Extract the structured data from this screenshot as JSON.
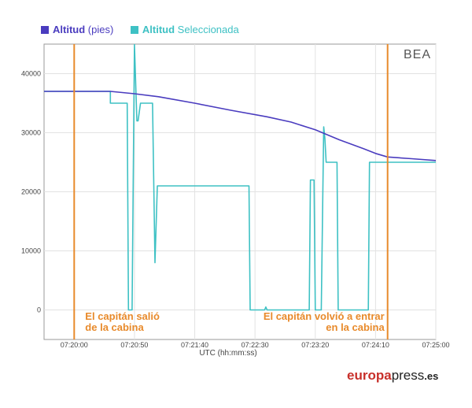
{
  "chart_data": {
    "type": "line",
    "x_type": "time",
    "x_range": [
      "07:19:35",
      "07:25:00"
    ],
    "y_range": [
      -5000,
      45000
    ],
    "grid": true,
    "xlabel": "UTC (hh:mm:ss)",
    "ylabel": "",
    "yticks": [
      {
        "value": 40000,
        "label": "40000"
      },
      {
        "value": 30000,
        "label": "30000"
      },
      {
        "value": 20000,
        "label": "20000"
      },
      {
        "value": 10000,
        "label": "10000"
      },
      {
        "value": 0,
        "label": "0"
      }
    ],
    "xticks": [
      {
        "value": "07:20:00",
        "label": "07:20:00"
      },
      {
        "value": "07:20:50",
        "label": "07:20:50"
      },
      {
        "value": "07:21:40",
        "label": "07:21:40"
      },
      {
        "value": "07:22:30",
        "label": "07:22:30"
      },
      {
        "value": "07:23:20",
        "label": "07:23:20"
      },
      {
        "value": "07:24:10",
        "label": "07:24:10"
      },
      {
        "value": "07:25:00",
        "label": "07:25:00"
      }
    ],
    "series": [
      {
        "name": "Altitud (pies)",
        "name_parts": {
          "bold": "Altitud",
          "rest": " (pies)"
        },
        "color": "#4a3cbf",
        "points": [
          [
            "07:19:35",
            37000
          ],
          [
            "07:20:30",
            37000
          ],
          [
            "07:20:50",
            36600
          ],
          [
            "07:21:10",
            36100
          ],
          [
            "07:21:40",
            35000
          ],
          [
            "07:22:10",
            33800
          ],
          [
            "07:22:40",
            32700
          ],
          [
            "07:23:00",
            31800
          ],
          [
            "07:23:20",
            30500
          ],
          [
            "07:23:40",
            28800
          ],
          [
            "07:24:00",
            27300
          ],
          [
            "07:24:10",
            26500
          ],
          [
            "07:24:20",
            25900
          ],
          [
            "07:24:40",
            25600
          ],
          [
            "07:25:00",
            25300
          ]
        ]
      },
      {
        "name": "Altitud Seleccionada",
        "name_parts": {
          "bold": "Altitud",
          "rest": " Seleccionada"
        },
        "color": "#3ec1c4",
        "points": [
          [
            "07:19:35",
            37000
          ],
          [
            "07:20:30",
            37000
          ],
          [
            "07:20:30",
            35000
          ],
          [
            "07:20:44",
            35000
          ],
          [
            "07:20:45",
            0
          ],
          [
            "07:20:48",
            0
          ],
          [
            "07:20:50",
            45000
          ],
          [
            "07:20:52",
            32000
          ],
          [
            "07:20:53",
            32000
          ],
          [
            "07:20:55",
            35000
          ],
          [
            "07:21:05",
            35000
          ],
          [
            "07:21:07",
            8000
          ],
          [
            "07:21:09",
            21000
          ],
          [
            "07:22:25",
            21000
          ],
          [
            "07:22:26",
            0
          ],
          [
            "07:22:38",
            0
          ],
          [
            "07:22:39",
            500
          ],
          [
            "07:22:40",
            0
          ],
          [
            "07:23:15",
            0
          ],
          [
            "07:23:16",
            22000
          ],
          [
            "07:23:19",
            22000
          ],
          [
            "07:23:20",
            0
          ],
          [
            "07:23:25",
            0
          ],
          [
            "07:23:27",
            31000
          ],
          [
            "07:23:28",
            29000
          ],
          [
            "07:23:29",
            25000
          ],
          [
            "07:23:38",
            25000
          ],
          [
            "07:23:39",
            0
          ],
          [
            "07:24:04",
            0
          ],
          [
            "07:24:05",
            25000
          ],
          [
            "07:25:00",
            25000
          ]
        ]
      }
    ],
    "markers": [
      {
        "x": "07:20:00",
        "color": "#e88a2b",
        "label_lines": [
          "El capitán salió",
          "de la cabina"
        ]
      },
      {
        "x": "07:24:20",
        "color": "#e88a2b",
        "label_lines": [
          "El capitán volvió a entrar",
          "en la cabina"
        ]
      }
    ],
    "watermark": "BEA"
  },
  "credit": {
    "bold": "europa",
    "rest": "press",
    "tld": ".es"
  }
}
